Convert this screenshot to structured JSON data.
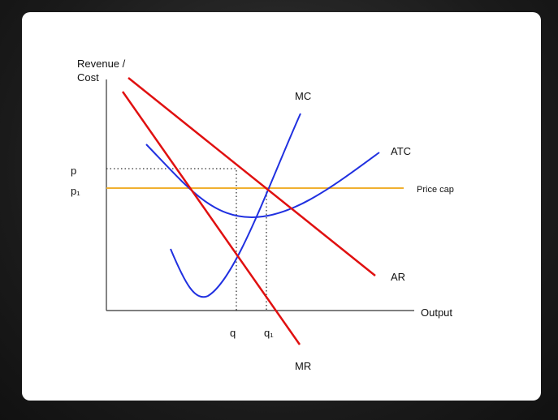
{
  "diagram": {
    "axes": {
      "y_label_line1": "Revenue /",
      "y_label_line2": "Cost",
      "x_label": "Output"
    },
    "curves": {
      "mc": "MC",
      "atc": "ATC",
      "price_cap": "Price cap",
      "ar": "AR",
      "mr": "MR"
    },
    "levels": {
      "p": "p",
      "p1": "p₁",
      "q": "q",
      "q1": "q₁"
    }
  }
}
